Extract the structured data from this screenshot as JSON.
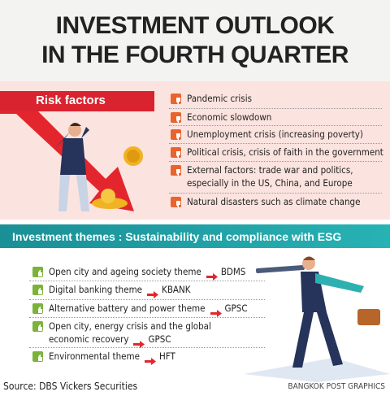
{
  "title": [
    "INVESTMENT OUTLOOK",
    "IN THE FOURTH QUARTER"
  ],
  "risk_factors": {
    "heading": "Risk factors",
    "items": [
      {
        "lines": [
          "Pandemic crisis"
        ]
      },
      {
        "lines": [
          "Economic slowdown"
        ]
      },
      {
        "lines": [
          "Unemployment crisis (increasing poverty)"
        ]
      },
      {
        "lines": [
          "Political crisis, crisis of faith in the government"
        ]
      },
      {
        "lines": [
          "External factors: trade war and politics,",
          "especially in the US, China, and Europe"
        ]
      },
      {
        "lines": [
          "Natural disasters such as climate change"
        ]
      }
    ]
  },
  "investment_themes": {
    "heading": "Investment themes : Sustainability and compliance with ESG",
    "items": [
      {
        "lines": [
          "Open city and ageing society theme"
        ],
        "ticker": "BDMS"
      },
      {
        "lines": [
          "Digital banking theme"
        ],
        "ticker": "KBANK"
      },
      {
        "lines": [
          "Alternative battery and power theme"
        ],
        "ticker": "GPSC"
      },
      {
        "lines": [
          "Open city, energy crisis and the global",
          "economic recovery"
        ],
        "ticker": "GPSC"
      },
      {
        "lines": [
          "Environmental theme"
        ],
        "ticker": "HFT"
      }
    ]
  },
  "source": "Source: DBS Vickers Securities",
  "credit": "BANGKOK POST GRAPHICS"
}
